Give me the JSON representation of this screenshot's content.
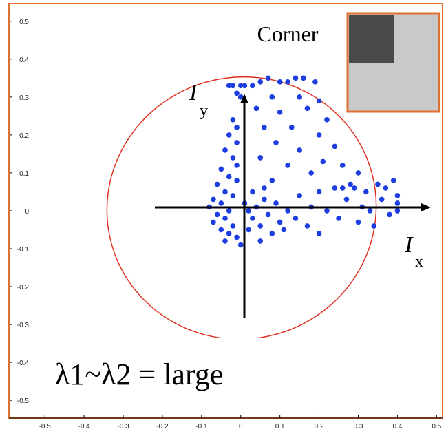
{
  "chart_data": {
    "type": "scatter",
    "annotations": {
      "inset_label": "Corner",
      "y_axis_symbol": "I",
      "y_axis_sub": "y",
      "x_axis_symbol": "I",
      "x_axis_sub": "x",
      "caption": "λ1~λ2 = large"
    },
    "color": "#1c3de0",
    "xlim": [
      -0.59,
      0.51
    ],
    "ylim": [
      -0.547,
      0.545
    ],
    "xticks": [
      -0.5,
      -0.4,
      -0.3,
      -0.2,
      -0.1,
      0,
      0.1,
      0.2,
      0.3,
      0.4,
      0.5
    ],
    "yticks": [
      -0.5,
      -0.4,
      -0.3,
      -0.2,
      -0.1,
      0,
      0.1,
      0.2,
      0.3,
      0.4,
      0.5
    ],
    "x": [
      -0.03,
      -0.02,
      0.0,
      0.01,
      -0.01,
      0.0,
      0.03,
      0.05,
      0.07,
      0.1,
      0.12,
      0.14,
      0.16,
      0.19,
      0.2,
      0.08,
      0.15,
      0.04,
      0.1,
      0.17,
      0.22,
      0.06,
      0.13,
      0.2,
      0.24,
      0.09,
      0.15,
      0.05,
      0.12,
      0.21,
      0.26,
      0.3,
      0.18,
      0.08,
      -0.02,
      -0.01,
      -0.03,
      -0.01,
      -0.04,
      -0.02,
      -0.01,
      -0.05,
      -0.03,
      -0.01,
      -0.06,
      -0.04,
      -0.02,
      -0.07,
      -0.05,
      -0.08,
      -0.03,
      -0.06,
      -0.04,
      -0.07,
      -0.02,
      -0.05,
      -0.03,
      -0.01,
      -0.04,
      0.0,
      0.01,
      0.02,
      0.03,
      0.04,
      0.05,
      0.06,
      0.07,
      0.02,
      0.08,
      0.1,
      0.03,
      0.09,
      0.12,
      0.11,
      0.05,
      0.14,
      0.06,
      0.15,
      0.18,
      0.2,
      0.22,
      0.24,
      0.25,
      0.27,
      0.28,
      0.3,
      0.31,
      0.32,
      0.33,
      0.35,
      0.36,
      0.37,
      0.38,
      0.39,
      0.4,
      0.4,
      0.4,
      0.34,
      0.2,
      0.17,
      0.26,
      0.29
    ],
    "y": [
      0.33,
      0.33,
      0.33,
      0.33,
      0.31,
      0.3,
      0.33,
      0.34,
      0.35,
      0.34,
      0.34,
      0.35,
      0.35,
      0.34,
      0.29,
      0.3,
      0.3,
      0.27,
      0.26,
      0.27,
      0.24,
      0.22,
      0.22,
      0.2,
      0.17,
      0.18,
      0.16,
      0.14,
      0.12,
      0.13,
      0.12,
      0.1,
      0.1,
      0.08,
      0.24,
      0.22,
      0.2,
      0.18,
      0.16,
      0.14,
      0.12,
      0.11,
      0.09,
      0.08,
      0.07,
      0.05,
      0.04,
      0.03,
      0.02,
      0.01,
      0.0,
      -0.01,
      -0.02,
      -0.03,
      -0.04,
      -0.05,
      -0.06,
      -0.07,
      -0.08,
      -0.09,
      0.02,
      0.0,
      -0.02,
      0.01,
      -0.04,
      0.03,
      -0.01,
      -0.05,
      -0.06,
      -0.03,
      0.05,
      0.02,
      0.0,
      -0.05,
      -0.08,
      -0.02,
      0.06,
      0.04,
      0.01,
      0.05,
      0.0,
      0.06,
      -0.02,
      0.03,
      0.07,
      -0.03,
      0.01,
      0.05,
      0.0,
      0.07,
      0.03,
      0.06,
      -0.01,
      0.08,
      0.04,
      0.02,
      0.0,
      -0.04,
      -0.06,
      -0.04,
      0.06,
      0.06
    ]
  }
}
